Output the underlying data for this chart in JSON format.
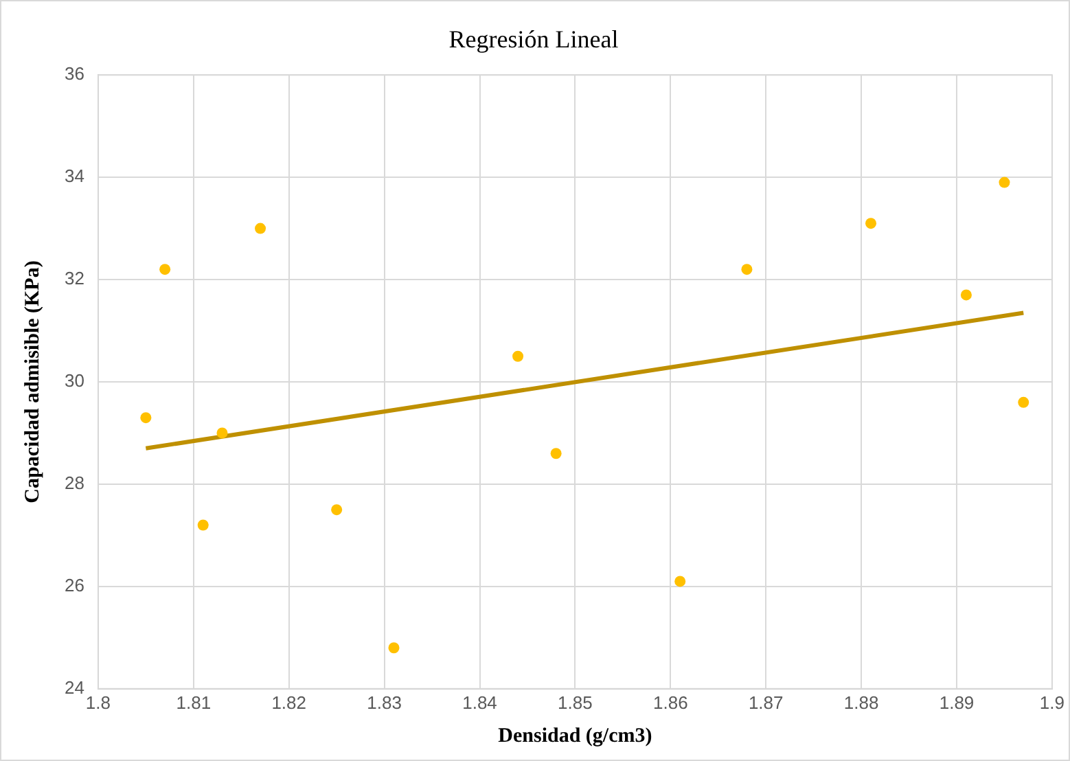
{
  "chart_data": {
    "type": "scatter",
    "title": "Regresión Lineal",
    "xlabel": "Densidad (g/cm3)",
    "ylabel": "Capacidad admisible (KPa)",
    "xlim": [
      1.8,
      1.9
    ],
    "xticks": [
      1.8,
      1.81,
      1.82,
      1.83,
      1.84,
      1.85,
      1.86,
      1.87,
      1.88,
      1.89,
      1.9
    ],
    "ylim": [
      24,
      36
    ],
    "yticks": [
      24,
      26,
      28,
      30,
      32,
      34,
      36
    ],
    "grid": true,
    "legend": false,
    "series": [
      {
        "type": "scatter",
        "color": "#ffc000",
        "marker": "circle",
        "x": [
          1.805,
          1.807,
          1.811,
          1.813,
          1.817,
          1.825,
          1.831,
          1.844,
          1.848,
          1.861,
          1.868,
          1.881,
          1.891,
          1.895,
          1.897
        ],
        "values": [
          29.3,
          32.2,
          27.2,
          29.0,
          33.0,
          27.5,
          24.8,
          30.5,
          28.6,
          26.1,
          32.2,
          33.1,
          31.7,
          33.9,
          29.6
        ]
      },
      {
        "type": "line",
        "color": "#bf9000",
        "marker": "none",
        "line_style": "solid",
        "x": [
          1.805,
          1.897
        ],
        "values": [
          28.7,
          31.35
        ]
      }
    ]
  }
}
